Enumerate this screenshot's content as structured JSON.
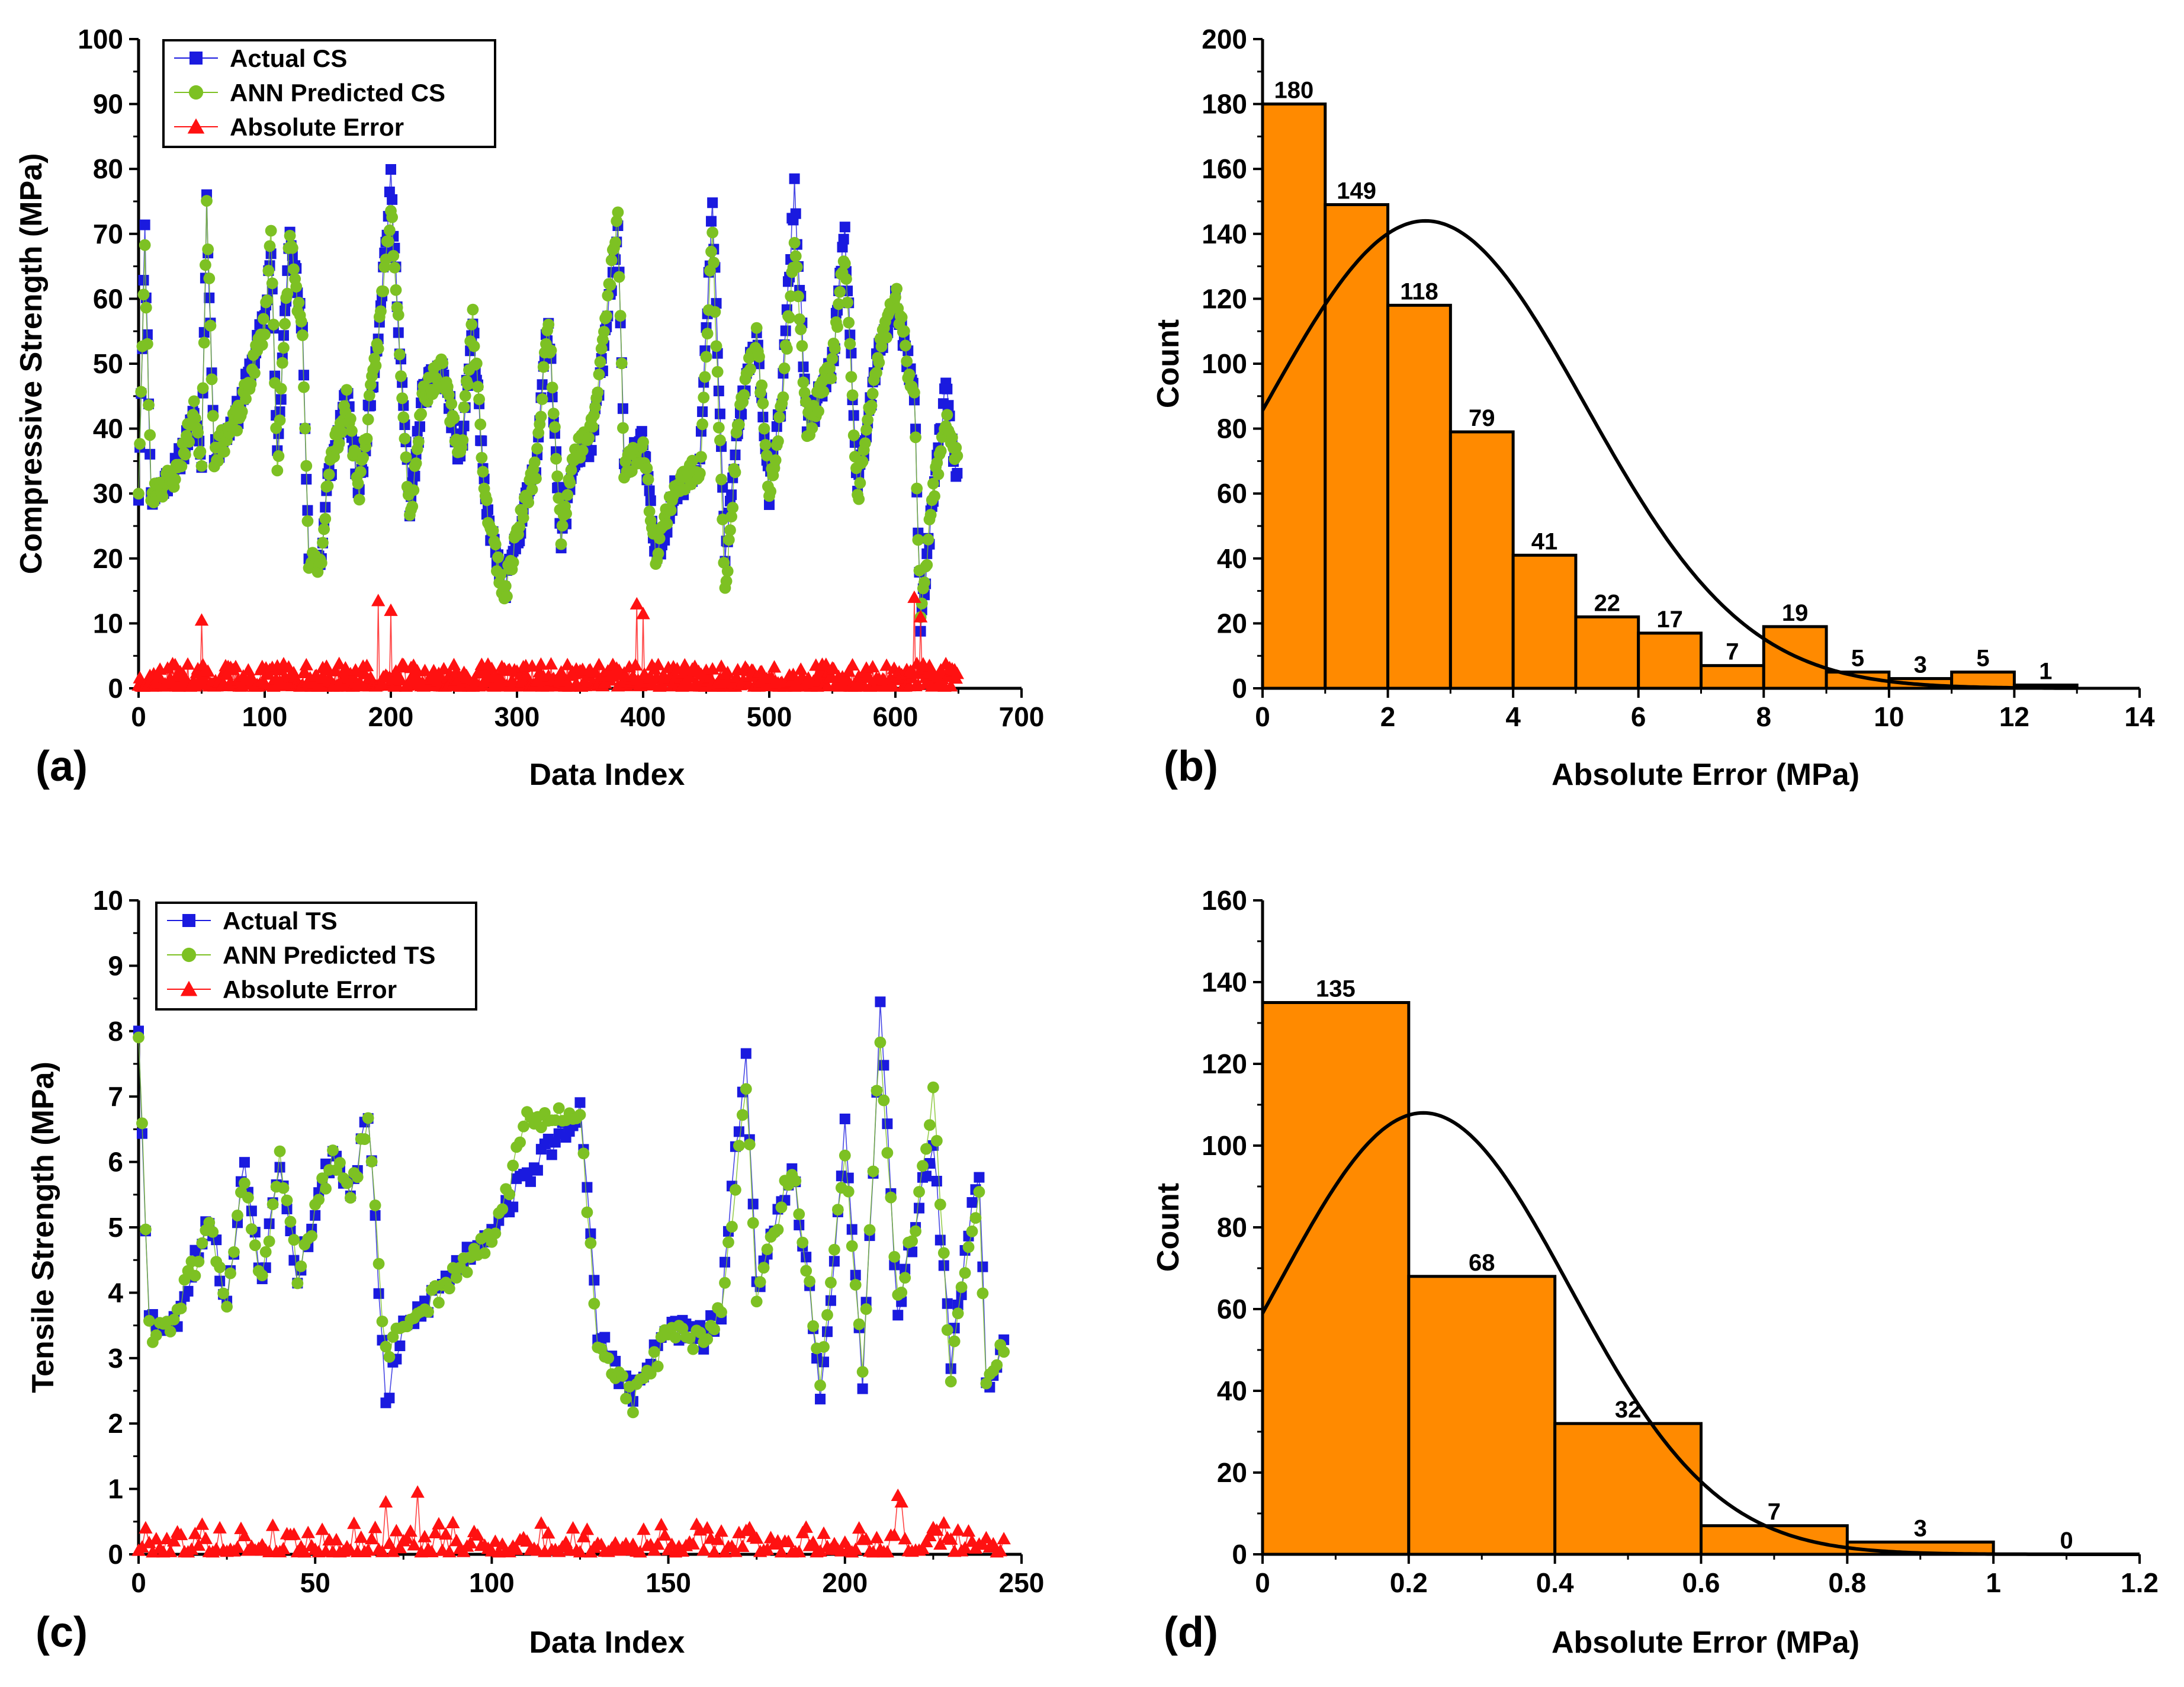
{
  "chart_data": [
    {
      "id": "a",
      "type": "line",
      "panel_label": "(a)",
      "xlabel": "Data Index",
      "ylabel": "Compressive Strength (MPa)",
      "xlim": [
        0,
        700
      ],
      "ylim": [
        0,
        100
      ],
      "xticks": [
        0,
        100,
        200,
        300,
        400,
        500,
        600,
        700
      ],
      "yticks": [
        0,
        10,
        20,
        30,
        40,
        50,
        60,
        70,
        80,
        90,
        100
      ],
      "legend_position": "top-left",
      "series": [
        {
          "name": "Actual CS",
          "marker": "square",
          "color": "#1a1adf",
          "gen": {
            "n": 650,
            "kind": "actual",
            "seed": 11,
            "anchors": [
              [
                0,
                30
              ],
              [
                5,
                70
              ],
              [
                10,
                29
              ],
              [
                30,
                34
              ],
              [
                45,
                42
              ],
              [
                50,
                35
              ],
              [
                54,
                75
              ],
              [
                60,
                36
              ],
              [
                80,
                43
              ],
              [
                100,
                57
              ],
              [
                105,
                68
              ],
              [
                110,
                35
              ],
              [
                120,
                72
              ],
              [
                130,
                54
              ],
              [
                135,
                20
              ],
              [
                145,
                20
              ],
              [
                150,
                32
              ],
              [
                165,
                45
              ],
              [
                175,
                30
              ],
              [
                190,
                55
              ],
              [
                200,
                78
              ],
              [
                205,
                60
              ],
              [
                215,
                27
              ],
              [
                225,
                45
              ],
              [
                240,
                50
              ],
              [
                255,
                35
              ],
              [
                265,
                56
              ],
              [
                275,
                28
              ],
              [
                290,
                15
              ],
              [
                300,
                23
              ],
              [
                315,
                35
              ],
              [
                325,
                57
              ],
              [
                335,
                22
              ],
              [
                345,
                35
              ],
              [
                360,
                38
              ],
              [
                380,
                70
              ],
              [
                385,
                35
              ],
              [
                400,
                38
              ],
              [
                410,
                20
              ],
              [
                425,
                30
              ],
              [
                445,
                35
              ],
              [
                455,
                74
              ],
              [
                465,
                20
              ],
              [
                475,
                40
              ],
              [
                490,
                55
              ],
              [
                500,
                30
              ],
              [
                510,
                45
              ],
              [
                520,
                77
              ],
              [
                530,
                40
              ],
              [
                550,
                50
              ],
              [
                560,
                70
              ],
              [
                570,
                30
              ],
              [
                585,
                50
              ],
              [
                600,
                60
              ],
              [
                615,
                45
              ],
              [
                620,
                10
              ],
              [
                630,
                30
              ],
              [
                640,
                46
              ],
              [
                650,
                30
              ]
            ]
          }
        },
        {
          "name": "ANN Predicted CS",
          "marker": "circle",
          "color": "#7dc123",
          "gen": {
            "n": 650,
            "kind": "pred",
            "seed": 23,
            "anchors": [
              [
                0,
                31
              ],
              [
                5,
                67
              ],
              [
                10,
                30
              ],
              [
                30,
                33
              ],
              [
                45,
                43
              ],
              [
                50,
                34
              ],
              [
                54,
                76
              ],
              [
                60,
                36
              ],
              [
                80,
                42
              ],
              [
                100,
                56
              ],
              [
                105,
                70
              ],
              [
                110,
                34
              ],
              [
                120,
                70
              ],
              [
                130,
                53
              ],
              [
                135,
                19
              ],
              [
                145,
                20
              ],
              [
                150,
                33
              ],
              [
                165,
                44
              ],
              [
                175,
                31
              ],
              [
                190,
                54
              ],
              [
                200,
                74
              ],
              [
                205,
                60
              ],
              [
                215,
                26
              ],
              [
                225,
                45
              ],
              [
                240,
                49
              ],
              [
                255,
                36
              ],
              [
                265,
                57
              ],
              [
                275,
                29
              ],
              [
                290,
                14
              ],
              [
                300,
                24
              ],
              [
                315,
                34
              ],
              [
                325,
                57
              ],
              [
                335,
                24
              ],
              [
                345,
                36
              ],
              [
                360,
                40
              ],
              [
                380,
                73
              ],
              [
                385,
                34
              ],
              [
                400,
                37
              ],
              [
                410,
                21
              ],
              [
                425,
                31
              ],
              [
                445,
                34
              ],
              [
                455,
                70
              ],
              [
                465,
                14
              ],
              [
                475,
                40
              ],
              [
                490,
                55
              ],
              [
                500,
                30
              ],
              [
                510,
                44
              ],
              [
                520,
                69
              ],
              [
                530,
                40
              ],
              [
                550,
                50
              ],
              [
                560,
                67
              ],
              [
                570,
                29
              ],
              [
                585,
                50
              ],
              [
                600,
                61
              ],
              [
                615,
                44
              ],
              [
                620,
                12
              ],
              [
                630,
                30
              ],
              [
                640,
                42
              ],
              [
                650,
                34
              ]
            ]
          }
        },
        {
          "name": "Absolute Error",
          "marker": "triangle",
          "color": "#ff1111",
          "gen": {
            "n": 650,
            "kind": "error",
            "seed": 37,
            "base": 1.6,
            "spread": 3.5,
            "peaks": [
              [
                50,
                10.5
              ],
              [
                190,
                13.5
              ],
              [
                200,
                12
              ],
              [
                395,
                13
              ],
              [
                400,
                11.5
              ],
              [
                615,
                14
              ],
              [
                620,
                11
              ]
            ]
          }
        }
      ]
    },
    {
      "id": "b",
      "type": "bar",
      "panel_label": "(b)",
      "xlabel": "Absolute Error (MPa)",
      "ylabel": "Count",
      "xlim": [
        0,
        14
      ],
      "ylim": [
        0,
        200
      ],
      "xticks": [
        0,
        2,
        4,
        6,
        8,
        10,
        12,
        14
      ],
      "yticks": [
        0,
        20,
        40,
        60,
        80,
        100,
        120,
        140,
        160,
        180,
        200
      ],
      "bin_edges": [
        0,
        1,
        2,
        3,
        4,
        5,
        6,
        7,
        8,
        9,
        10,
        11,
        12,
        13
      ],
      "values": [
        180,
        149,
        118,
        79,
        41,
        22,
        17,
        7,
        19,
        5,
        3,
        5,
        1
      ],
      "bar_color": "#ff8a00",
      "fit_curve": {
        "mean": 2.6,
        "sd": 2.55,
        "peak": 144
      }
    },
    {
      "id": "c",
      "type": "line",
      "panel_label": "(c)",
      "xlabel": "Data Index",
      "ylabel": "Tensile Strength (MPa)",
      "xlim": [
        0,
        250
      ],
      "ylim": [
        0,
        10
      ],
      "xticks": [
        0,
        50,
        100,
        150,
        200,
        250
      ],
      "yticks": [
        0,
        1,
        2,
        3,
        4,
        5,
        6,
        7,
        8,
        9,
        10
      ],
      "legend_position": "top-left",
      "series": [
        {
          "name": "Actual TS",
          "marker": "square",
          "color": "#1a1adf",
          "gen": {
            "n": 246,
            "kind": "actual",
            "seed": 53,
            "anchors": [
              [
                0,
                8.1
              ],
              [
                3,
                3.6
              ],
              [
                10,
                3.5
              ],
              [
                20,
                5.2
              ],
              [
                25,
                3.8
              ],
              [
                30,
                6.0
              ],
              [
                35,
                4.2
              ],
              [
                40,
                6.1
              ],
              [
                45,
                4.3
              ],
              [
                55,
                6.2
              ],
              [
                60,
                5.5
              ],
              [
                65,
                6.8
              ],
              [
                70,
                2.3
              ],
              [
                75,
                3.4
              ],
              [
                90,
                4.4
              ],
              [
                100,
                5.0
              ],
              [
                110,
                5.8
              ],
              [
                125,
                6.8
              ],
              [
                130,
                3.4
              ],
              [
                140,
                2.4
              ],
              [
                150,
                3.5
              ],
              [
                160,
                3.3
              ],
              [
                165,
                3.7
              ],
              [
                172,
                7.8
              ],
              [
                175,
                4.0
              ],
              [
                185,
                6.0
              ],
              [
                190,
                4.0
              ],
              [
                193,
                2.2
              ],
              [
                200,
                6.5
              ],
              [
                205,
                2.5
              ],
              [
                210,
                8.3
              ],
              [
                215,
                3.7
              ],
              [
                220,
                5.1
              ],
              [
                225,
                6.3
              ],
              [
                230,
                3.0
              ],
              [
                235,
                4.9
              ],
              [
                238,
                5.9
              ],
              [
                240,
                2.6
              ],
              [
                245,
                3.2
              ]
            ]
          }
        },
        {
          "name": "ANN Predicted TS",
          "marker": "circle",
          "color": "#7dc123",
          "gen": {
            "n": 246,
            "kind": "pred",
            "seed": 61,
            "anchors": [
              [
                0,
                8.0
              ],
              [
                3,
                3.4
              ],
              [
                10,
                3.6
              ],
              [
                20,
                5.0
              ],
              [
                25,
                3.9
              ],
              [
                30,
                5.8
              ],
              [
                35,
                4.1
              ],
              [
                40,
                6.0
              ],
              [
                45,
                4.3
              ],
              [
                55,
                6.1
              ],
              [
                60,
                5.4
              ],
              [
                65,
                6.7
              ],
              [
                70,
                3.0
              ],
              [
                75,
                3.5
              ],
              [
                90,
                4.3
              ],
              [
                100,
                4.8
              ],
              [
                110,
                6.6
              ],
              [
                125,
                6.7
              ],
              [
                130,
                3.3
              ],
              [
                140,
                2.3
              ],
              [
                150,
                3.4
              ],
              [
                160,
                3.2
              ],
              [
                165,
                3.7
              ],
              [
                172,
                7.2
              ],
              [
                175,
                4.0
              ],
              [
                185,
                5.9
              ],
              [
                190,
                4.1
              ],
              [
                193,
                2.5
              ],
              [
                200,
                6.1
              ],
              [
                205,
                2.9
              ],
              [
                210,
                7.9
              ],
              [
                215,
                3.8
              ],
              [
                220,
                5.1
              ],
              [
                225,
                7.0
              ],
              [
                230,
                2.7
              ],
              [
                235,
                4.8
              ],
              [
                238,
                5.6
              ],
              [
                240,
                2.6
              ],
              [
                245,
                3.2
              ]
            ]
          }
        },
        {
          "name": "Absolute Error",
          "marker": "triangle",
          "color": "#ff1111",
          "gen": {
            "n": 246,
            "kind": "error",
            "seed": 79,
            "base": 0.18,
            "spread": 0.45,
            "peaks": [
              [
                70,
                0.8
              ],
              [
                79,
                0.95
              ],
              [
                215,
                0.9
              ],
              [
                216,
                0.8
              ]
            ]
          }
        }
      ]
    },
    {
      "id": "d",
      "type": "bar",
      "panel_label": "(d)",
      "xlabel": "Absolute Error (MPa)",
      "ylabel": "Count",
      "xlim": [
        0,
        1.2
      ],
      "ylim": [
        0,
        160
      ],
      "xticks": [
        0.0,
        0.2,
        0.4,
        0.6,
        0.8,
        1.0,
        1.2
      ],
      "yticks": [
        0,
        20,
        40,
        60,
        80,
        100,
        120,
        140,
        160
      ],
      "bin_edges": [
        0,
        0.2,
        0.4,
        0.6,
        0.8,
        1.0,
        1.2
      ],
      "values": [
        135,
        68,
        32,
        7,
        3,
        0
      ],
      "bar_color": "#ff8a00",
      "fit_curve": {
        "mean": 0.22,
        "sd": 0.2,
        "peak": 108
      }
    }
  ]
}
